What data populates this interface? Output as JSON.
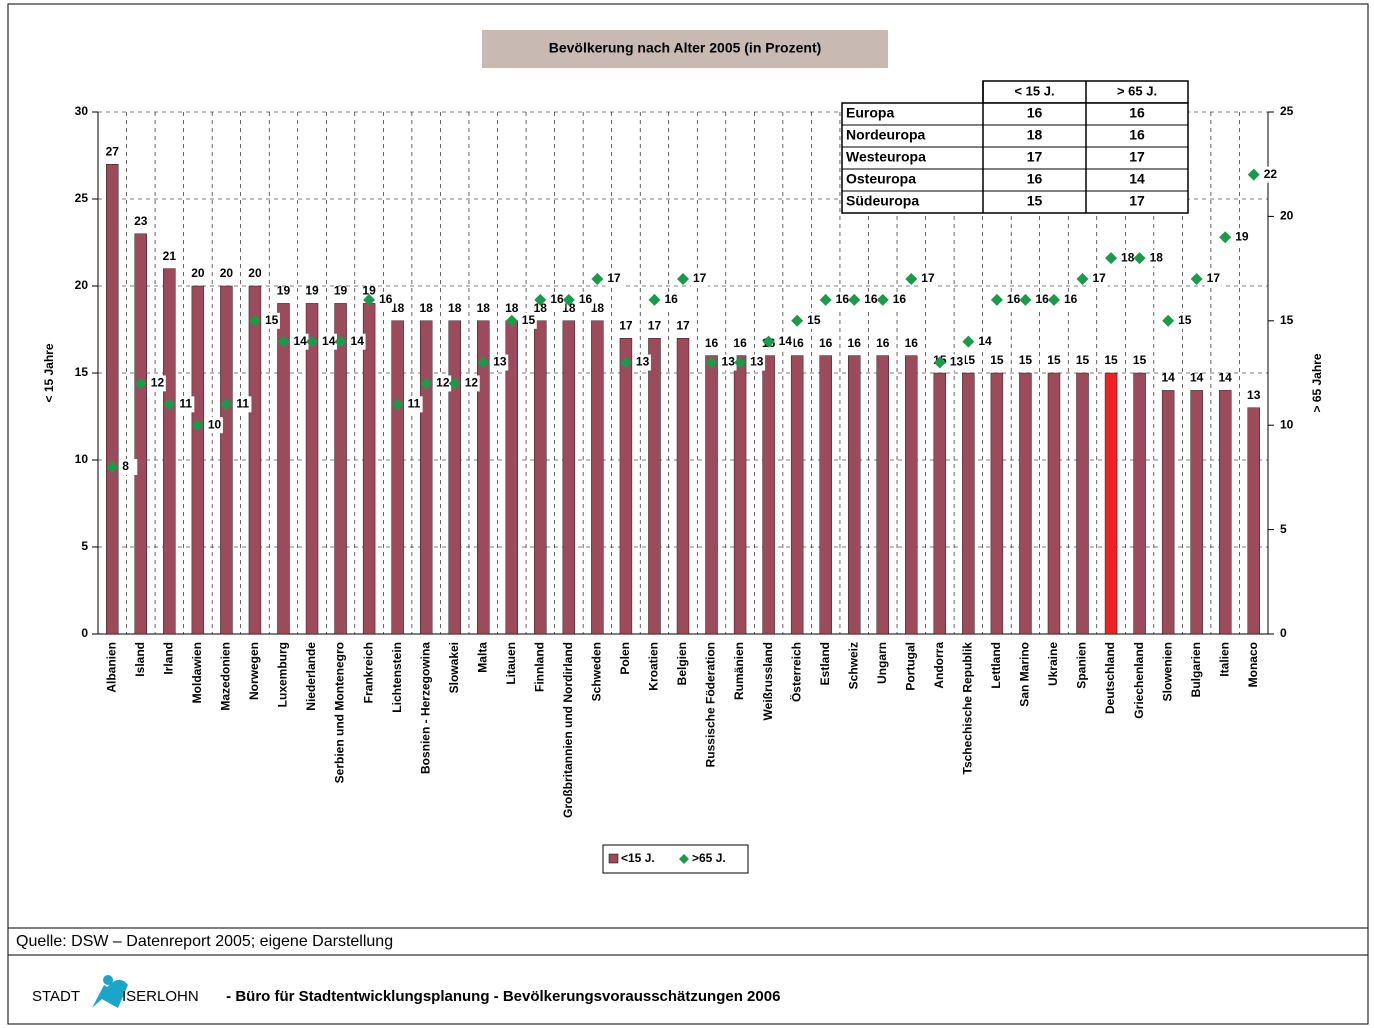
{
  "chart_data": {
    "type": "bar",
    "title": "Bevölkerung nach Alter 2005 (in Prozent)",
    "categories": [
      "Albanien",
      "Island",
      "Irland",
      "Moldawien",
      "Mazedonien",
      "Norwegen",
      "Luxemburg",
      "Niederlande",
      "Serbien und Montenegro",
      "Frankreich",
      "Lichtenstein",
      "Bosnien - Herzegowina",
      "Slowakei",
      "Malta",
      "Litauen",
      "Finnland",
      "Großbritannien und Nordirland",
      "Schweden",
      "Polen",
      "Kroatien",
      "Belgien",
      "Russische Föderation",
      "Rumänien",
      "Weißrussland",
      "Österreich",
      "Estland",
      "Schweiz",
      "Ungarn",
      "Portugal",
      "Andorra",
      "Tschechische Republik",
      "Lettland",
      "San Marino",
      "Ukraine",
      "Spanien",
      "Deutschland",
      "Griechenland",
      "Slowenien",
      "Bulgarien",
      "Italien",
      "Monaco"
    ],
    "series": [
      {
        "name": "<15 J.",
        "color": "#9b4b5b",
        "colors": [
          "#9b4b5b",
          "#9b4b5b",
          "#9b4b5b",
          "#9b4b5b",
          "#9b4b5b",
          "#9b4b5b",
          "#9b4b5b",
          "#9b4b5b",
          "#9b4b5b",
          "#9b4b5b",
          "#9b4b5b",
          "#9b4b5b",
          "#9b4b5b",
          "#9b4b5b",
          "#9b4b5b",
          "#9b4b5b",
          "#9b4b5b",
          "#9b4b5b",
          "#9b4b5b",
          "#9b4b5b",
          "#9b4b5b",
          "#9b4b5b",
          "#9b4b5b",
          "#9b4b5b",
          "#9b4b5b",
          "#9b4b5b",
          "#9b4b5b",
          "#9b4b5b",
          "#9b4b5b",
          "#9b4b5b",
          "#9b4b5b",
          "#9b4b5b",
          "#9b4b5b",
          "#9b4b5b",
          "#9b4b5b",
          "#ee2222",
          "#9b4b5b",
          "#9b4b5b",
          "#9b4b5b",
          "#9b4b5b",
          "#9b4b5b"
        ],
        "values": [
          27,
          23,
          21,
          20,
          20,
          20,
          19,
          19,
          19,
          19,
          18,
          18,
          18,
          18,
          18,
          18,
          18,
          18,
          17,
          17,
          17,
          16,
          16,
          16,
          16,
          16,
          16,
          16,
          16,
          15,
          15,
          15,
          15,
          15,
          15,
          15,
          15,
          14,
          14,
          14,
          13
        ]
      },
      {
        "name": ">65 J.",
        "color": "#1a9a4a",
        "axis": "y2",
        "marker": "diamond",
        "values": [
          8,
          12,
          11,
          10,
          11,
          15,
          14,
          14,
          14,
          16,
          11,
          12,
          12,
          13,
          15,
          16,
          16,
          17,
          13,
          16,
          17,
          13,
          13,
          14,
          15,
          16,
          16,
          16,
          17,
          13,
          14,
          16,
          16,
          16,
          17,
          18,
          18,
          15,
          17,
          19,
          22
        ]
      }
    ],
    "ylim": [
      0,
      30
    ],
    "yticks": [
      0,
      5,
      10,
      15,
      20,
      25,
      30
    ],
    "ylabel": "< 15 Jahre",
    "y2lim": [
      0,
      25
    ],
    "y2ticks": [
      0,
      5,
      10,
      15,
      20,
      25
    ],
    "y2label": "> 65 Jahre",
    "grid": true,
    "table": {
      "header": [
        "< 15 J.",
        "> 65 J."
      ],
      "rows": [
        [
          "Europa",
          "16",
          "16"
        ],
        [
          "Nordeuropa",
          "18",
          "16"
        ],
        [
          "Westeuropa",
          "17",
          "17"
        ],
        [
          "Osteuropa",
          "16",
          "14"
        ],
        [
          "Südeuropa",
          "15",
          "17"
        ]
      ]
    }
  },
  "source": "Quelle: DSW – Datenreport 2005; eigene Darstellung",
  "footer": {
    "logo_left": "STADT",
    "logo_right": "ISERLOHN",
    "text": " - Büro für Stadtentwicklungsplanung - Bevölkerungsvorausschätzungen 2006"
  }
}
